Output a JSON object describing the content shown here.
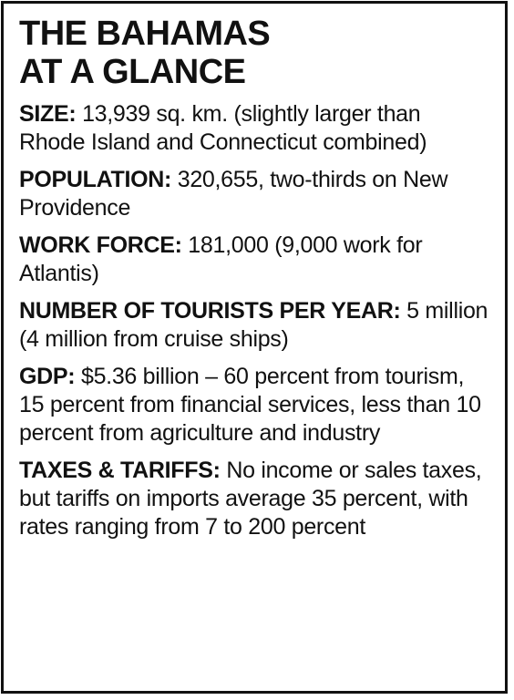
{
  "title": [
    "THE BAHAMAS",
    "AT A GLANCE"
  ],
  "facts": [
    {
      "label": "SIZE:",
      "text": "13,939 sq. km. (slightly larger than Rhode Island and Connecticut combined)"
    },
    {
      "label": "POPULATION:",
      "text": "320,655, two-thirds on New Providence"
    },
    {
      "label": "WORK FORCE:",
      "text": "181,000 (9,000 work for Atlantis)"
    },
    {
      "label": "NUMBER OF TOURISTS PER YEAR:",
      "text": "5 million (4 million from cruise ships)"
    },
    {
      "label": "GDP:",
      "text": "$5.36 billion – 60 percent from tourism, 15 percent from financial services, less than 10 percent from agriculture and industry"
    },
    {
      "label": "TAXES & TARIFFS:",
      "text": "No income or sales taxes, but tariffs on imports average 35 percent, with rates ranging from 7 to 200 percent"
    }
  ]
}
